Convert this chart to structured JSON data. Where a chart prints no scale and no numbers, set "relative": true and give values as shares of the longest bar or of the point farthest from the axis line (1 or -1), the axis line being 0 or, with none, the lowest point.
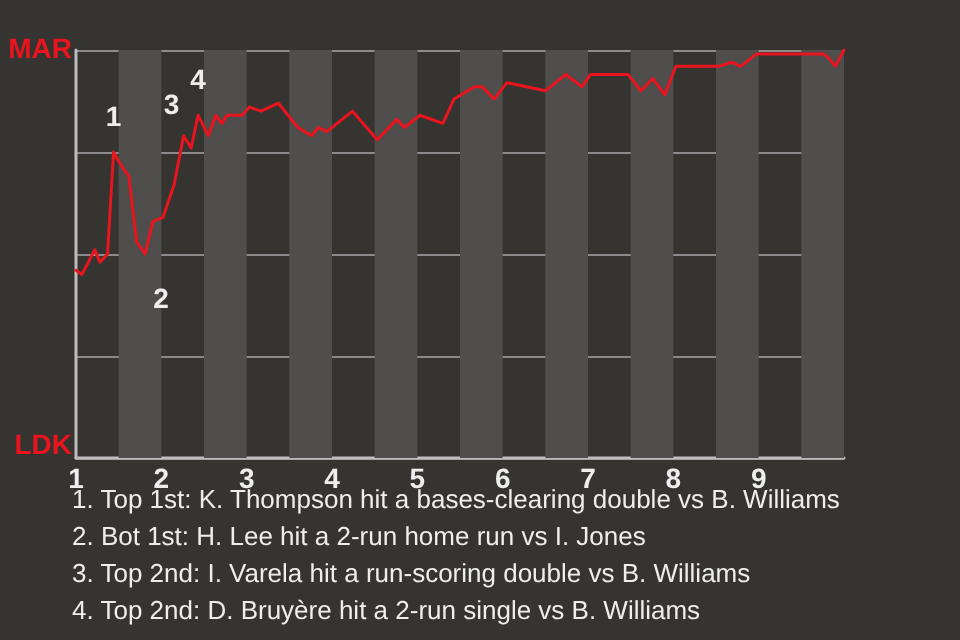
{
  "chart_data": {
    "type": "line",
    "x": [
      1,
      1.07,
      1.22,
      1.28,
      1.37,
      1.44,
      1.52,
      1.62,
      1.71,
      1.81,
      1.9,
      2.02,
      2.15,
      2.26,
      2.35,
      2.43,
      2.55,
      2.64,
      2.71,
      2.77,
      2.95,
      3.03,
      3.17,
      3.37,
      3.6,
      3.68,
      3.76,
      3.84,
      3.94,
      4.24,
      4.53,
      4.76,
      4.85,
      5.03,
      5.3,
      5.43,
      5.67,
      5.76,
      5.9,
      6.05,
      6.5,
      6.74,
      6.93,
      7.03,
      7.23,
      7.47,
      7.62,
      7.76,
      7.9,
      8.03,
      8.33,
      8.53,
      8.68,
      8.79,
      8.97,
      9.17,
      9.48,
      9.76,
      9.82,
      9.9,
      10
    ],
    "series": [
      {
        "color": "#e8141e",
        "values": [
          0.46,
          0.45,
          0.51,
          0.48,
          0.5,
          0.75,
          0.72,
          0.69,
          0.53,
          0.5,
          0.58,
          0.59,
          0.67,
          0.79,
          0.76,
          0.84,
          0.79,
          0.84,
          0.82,
          0.84,
          0.84,
          0.86,
          0.85,
          0.87,
          0.81,
          0.8,
          0.79,
          0.81,
          0.8,
          0.85,
          0.78,
          0.83,
          0.81,
          0.84,
          0.82,
          0.88,
          0.91,
          0.91,
          0.88,
          0.92,
          0.9,
          0.94,
          0.91,
          0.94,
          0.94,
          0.94,
          0.9,
          0.93,
          0.89,
          0.96,
          0.96,
          0.96,
          0.97,
          0.96,
          0.99,
          0.99,
          0.99,
          0.99,
          0.98,
          0.96,
          1.0
        ]
      }
    ],
    "relative": true,
    "xlim": [
      1,
      10
    ],
    "xticks": [
      1,
      2,
      3,
      4,
      5,
      6,
      7,
      8,
      9
    ],
    "grid": "y",
    "marker": "none",
    "line_style": "solid",
    "bands": [
      {
        "axis": "x",
        "from": 1.5,
        "to": 2,
        "color": "#4f4e4c"
      },
      {
        "axis": "x",
        "from": 2.5,
        "to": 3,
        "color": "#4f4e4c"
      },
      {
        "axis": "x",
        "from": 3.5,
        "to": 4,
        "color": "#4f4e4c"
      },
      {
        "axis": "x",
        "from": 4.5,
        "to": 5,
        "color": "#4f4e4c"
      },
      {
        "axis": "x",
        "from": 5.5,
        "to": 6,
        "color": "#4f4e4c"
      },
      {
        "axis": "x",
        "from": 6.5,
        "to": 7,
        "color": "#4f4e4c"
      },
      {
        "axis": "x",
        "from": 7.5,
        "to": 8,
        "color": "#4f4e4c"
      },
      {
        "axis": "x",
        "from": 8.5,
        "to": 9,
        "color": "#4f4e4c"
      },
      {
        "axis": "x",
        "from": 9.5,
        "to": 10,
        "color": "#4f4e4c"
      }
    ],
    "annotations": [
      "MAR",
      "LDK",
      {
        "text": "1",
        "x": 1.44,
        "y": 0.75
      },
      {
        "text": "2",
        "x": 1.81,
        "y": 0.5
      },
      {
        "text": "3",
        "x": 2.26,
        "y": 0.79
      },
      {
        "text": "4",
        "x": 2.43,
        "y": 0.84
      },
      "1. Top 1st: K. Thompson hit a bases-clearing double vs B. Williams",
      "2. Bot 1st: H. Lee hit a 2-run home run vs I. Jones",
      "3. Top 2nd: I. Varela hit a run-scoring double vs B. Williams",
      "4. Top 2nd: D. Bruyère hit a 2-run single vs B. Williams"
    ]
  }
}
